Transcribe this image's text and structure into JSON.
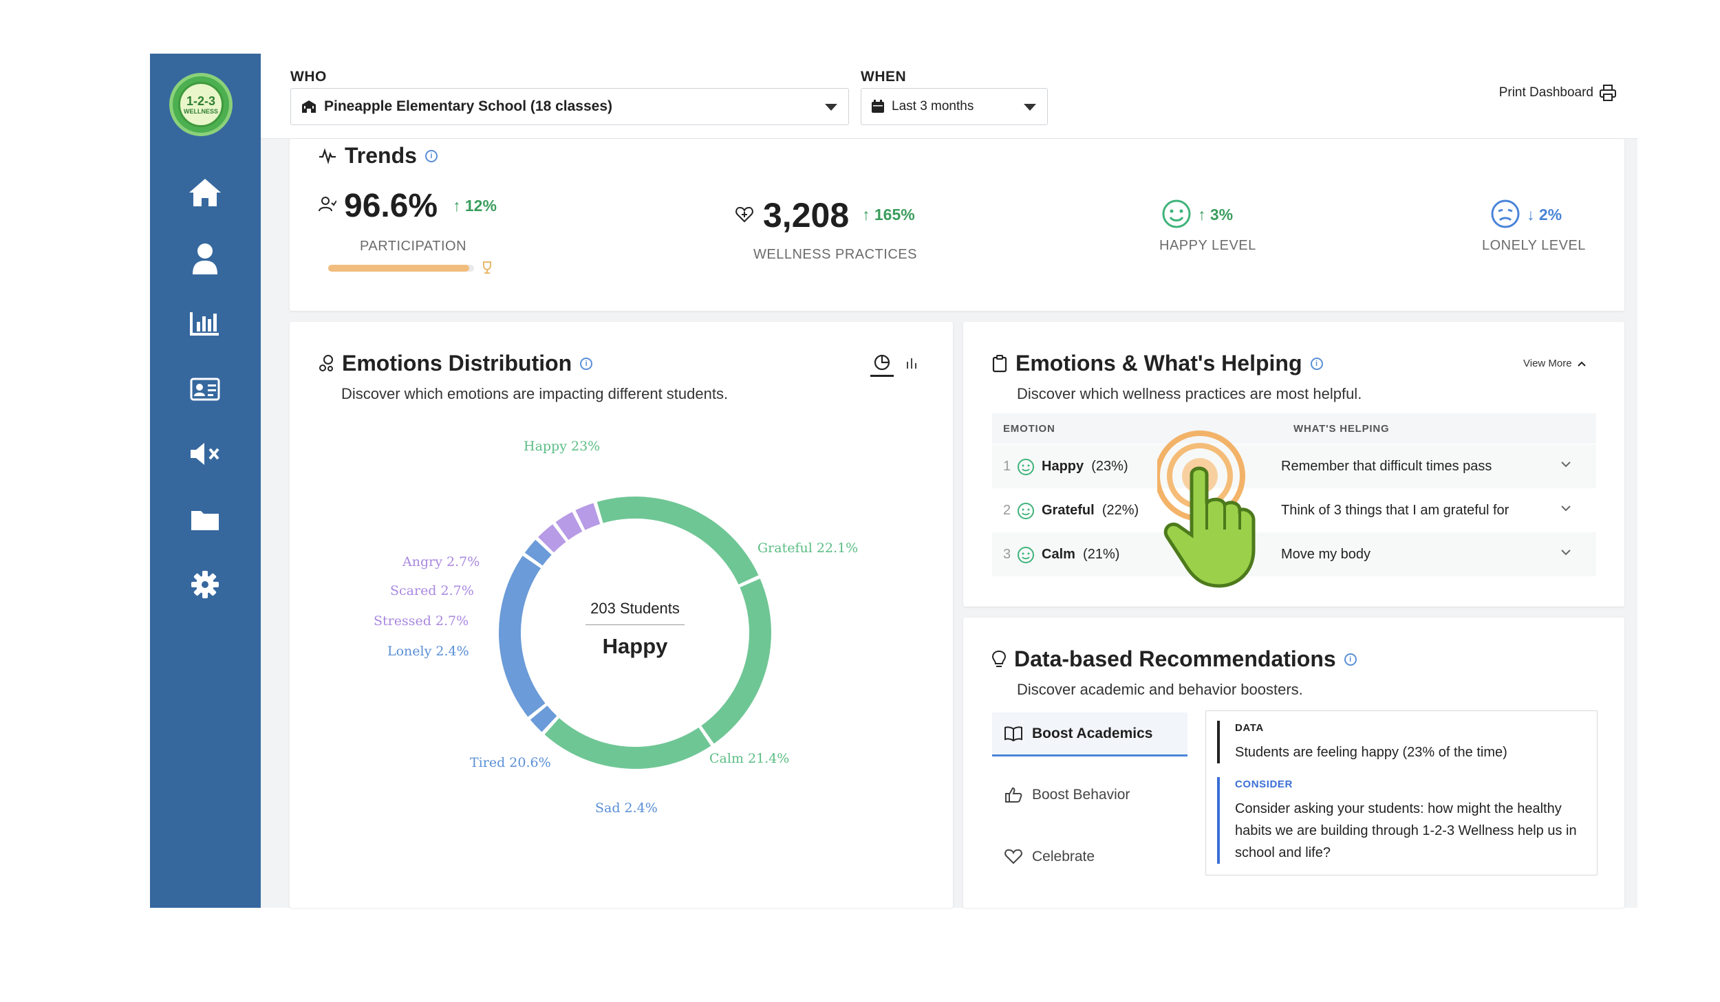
{
  "app": {
    "logo_line1": "1-2-3",
    "logo_line2": "WELLNESS",
    "nav": [
      {
        "icon": "home-icon"
      },
      {
        "icon": "user-icon"
      },
      {
        "icon": "bar-chart-icon"
      },
      {
        "icon": "id-card-icon"
      },
      {
        "icon": "mute-icon"
      },
      {
        "icon": "folder-icon"
      },
      {
        "icon": "gear-icon"
      }
    ],
    "sidebar_color": "#36689e"
  },
  "header": {
    "who_label": "WHO",
    "who_value": "Pineapple Elementary School (18 classes)",
    "when_label": "WHEN",
    "when_value": "Last 3 months",
    "print_label": "Print Dashboard"
  },
  "trends": {
    "title": "Trends",
    "participation": {
      "value": "96.6%",
      "delta": "↑ 12%",
      "label": "PARTICIPATION",
      "progress": 0.966
    },
    "practices": {
      "value": "3,208",
      "delta": "↑ 165%",
      "label": "WELLNESS PRACTICES"
    },
    "happy": {
      "delta": "↑ 3%",
      "label": "HAPPY LEVEL"
    },
    "lonely": {
      "delta": "↓ 2%",
      "label": "LONELY LEVEL"
    }
  },
  "distribution": {
    "title": "Emotions Distribution",
    "subtitle": "Discover which emotions are impacting different students.",
    "center_count": "203 Students",
    "center_emotion": "Happy",
    "labels": {
      "happy": "Happy 23%",
      "grateful": "Grateful 22.1%",
      "calm": "Calm 21.4%",
      "sad": "Sad 2.4%",
      "tired": "Tired 20.6%",
      "lonely": "Lonely 2.4%",
      "stressed": "Stressed 2.7%",
      "scared": "Scared 2.7%",
      "angry": "Angry 2.7%"
    }
  },
  "chart_data": {
    "type": "pie",
    "categories": [
      "Happy",
      "Grateful",
      "Calm",
      "Sad",
      "Tired",
      "Lonely",
      "Stressed",
      "Scared",
      "Angry"
    ],
    "values": [
      23,
      22.1,
      21.4,
      2.4,
      20.6,
      2.4,
      2.7,
      2.7,
      2.7
    ],
    "colors": [
      "#6fc695",
      "#6fc695",
      "#6fc695",
      "#6b9bd8",
      "#6b9bd8",
      "#6b9bd8",
      "#b79be6",
      "#b79be6",
      "#b79be6"
    ],
    "title": "Emotions Distribution",
    "center_text": [
      "203 Students",
      "Happy"
    ]
  },
  "helping": {
    "title": "Emotions & What's Helping",
    "subtitle": "Discover which wellness practices are most helpful.",
    "view_more": "View More",
    "col_emotion": "EMOTION",
    "col_helping": "WHAT'S HELPING",
    "rows": [
      {
        "idx": "1",
        "emotion": "Happy",
        "pct": "(23%)",
        "helping": "Remember that difficult times pass"
      },
      {
        "idx": "2",
        "emotion": "Grateful",
        "pct": "(22%)",
        "helping": "Think of 3 things that I am grateful for"
      },
      {
        "idx": "3",
        "emotion": "Calm",
        "pct": "(21%)",
        "helping": "Move my body"
      }
    ]
  },
  "recommendations": {
    "title": "Data-based Recommendations",
    "subtitle": "Discover academic and behavior boosters.",
    "tabs": [
      "Boost Academics",
      "Boost Behavior",
      "Celebrate"
    ],
    "data_tag": "DATA",
    "data_text": "Students are feeling happy (23% of the time)",
    "consider_tag": "CONSIDER",
    "consider_text": "Consider asking your students: how might the healthy habits we are building through 1-2-3 Wellness help us in school and life?"
  }
}
